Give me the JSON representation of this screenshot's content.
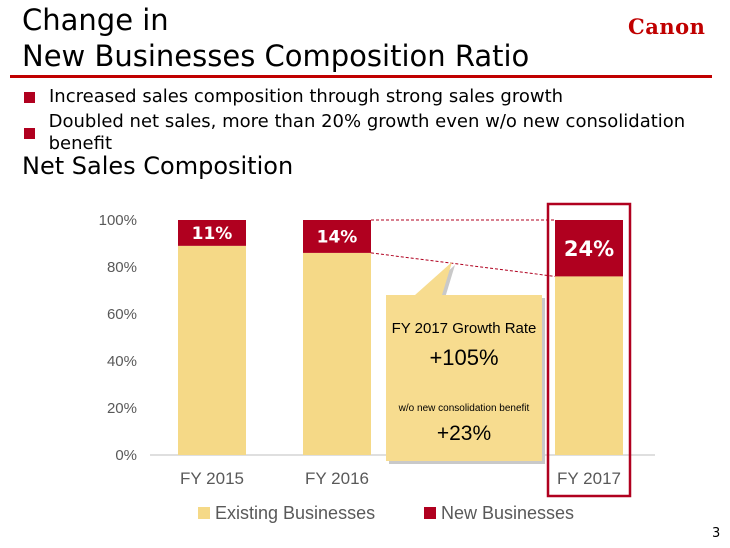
{
  "header": {
    "title_line1": "Change in",
    "title_line2": "New Businesses Composition Ratio",
    "logo": "Canon"
  },
  "bullets": [
    "Increased sales composition through strong sales growth",
    "Doubled net sales, more than 20% growth even w/o new consolidation benefit"
  ],
  "section_title": "Net Sales Composition",
  "callout": {
    "heading": "FY 2017 Growth Rate",
    "value": "+105%",
    "note": "w/o new consolidation benefit",
    "note_value": "+23%"
  },
  "page_number": "3",
  "colors": {
    "accent": "#c00000",
    "existing": "#f5d987",
    "new": "#b0001f",
    "callout_fill": "#f7dc8f"
  },
  "chart_data": {
    "type": "bar",
    "stacked": true,
    "categories": [
      "FY 2015",
      "FY 2016",
      "FY 2017"
    ],
    "series": [
      {
        "name": "Existing Businesses",
        "values": [
          89,
          86,
          76
        ]
      },
      {
        "name": "New Businesses",
        "values": [
          11,
          14,
          24
        ]
      }
    ],
    "data_labels": [
      "11%",
      "14%",
      "24%"
    ],
    "y_ticks": [
      "0%",
      "20%",
      "40%",
      "60%",
      "80%",
      "100%"
    ],
    "ylim": [
      0,
      100
    ],
    "legend_position": "bottom",
    "highlight_category": "FY 2017"
  }
}
